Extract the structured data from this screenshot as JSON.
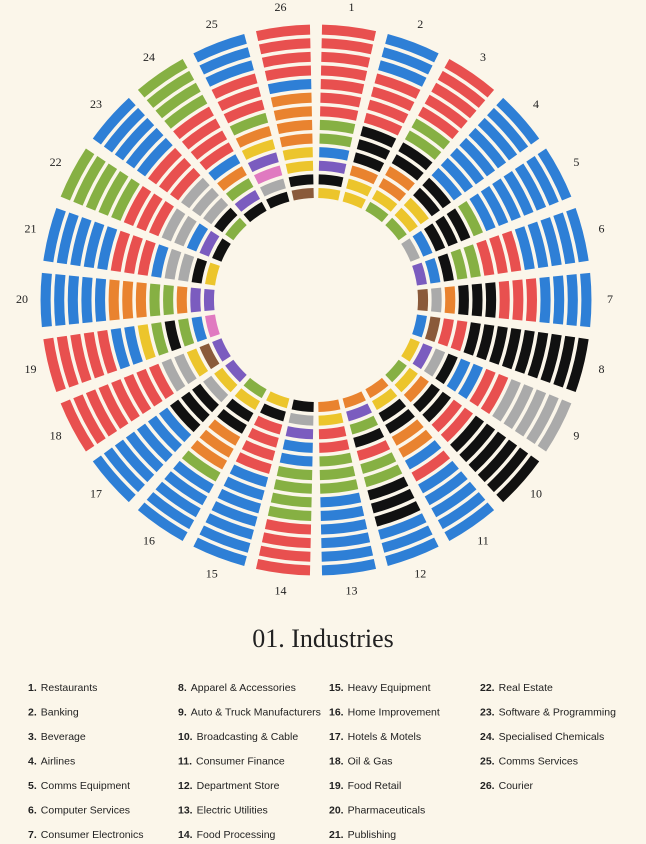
{
  "chart_data": {
    "type": "radial-rings",
    "title": "01. Industries",
    "palette": {
      "B": "#2e7fd6",
      "R": "#e8504f",
      "G": "#86b043",
      "O": "#e9832f",
      "Y": "#ecc52c",
      "K": "#111111",
      "A": "#aaaaaa",
      "P": "#7b5cbf",
      "N": "#e07ac0",
      "W": "#8a5a3a"
    },
    "wedges": [
      {
        "label": "1",
        "rings": "YKPBGGRRRRRRR"
      },
      {
        "label": "2",
        "rings": "YYOKKKRRRRBBB"
      },
      {
        "label": "3",
        "rings": "GYOOKKGGRRRRR"
      },
      {
        "label": "4",
        "rings": "GYYKKBBBBBBBB"
      },
      {
        "label": "5",
        "rings": "ABKKKGBBBBBBB"
      },
      {
        "label": "6",
        "rings": "PBKGGRRRBBBBB"
      },
      {
        "label": "7",
        "rings": "WAOKKKRRRBBBB"
      },
      {
        "label": "8",
        "rings": "BWRRKKKKKKKKK"
      },
      {
        "label": "9",
        "rings": "YPAKBBRRAAAAA"
      },
      {
        "label": "10",
        "rings": "GYOKKRRKKKKKK"
      },
      {
        "label": "11",
        "rings": "OYKKOOBRBBBBB"
      },
      {
        "label": "12",
        "rings": "OPGKRGGKKKBBB"
      },
      {
        "label": "13",
        "rings": "OYRRGGGBBBBBB"
      },
      {
        "label": "14",
        "rings": "KAPBBGGGGRRRR"
      },
      {
        "label": "15",
        "rings": "YKRRRRBBBBBBB"
      },
      {
        "label": "16",
        "rings": "GYKKOOOGBBBBB"
      },
      {
        "label": "17",
        "rings": "PYAKKKBBBBBBB"
      },
      {
        "label": "18",
        "rings": "PWYAARRRRRRRR"
      },
      {
        "label": "19",
        "rings": "NBGKGYBBRRRRR"
      },
      {
        "label": "20",
        "rings": "PPOGGOOOBBBBB"
      },
      {
        "label": "21",
        "rings": "YKAABRRRBBBBB"
      },
      {
        "label": "22",
        "rings": "KPBAARRRGGGGG"
      },
      {
        "label": "23",
        "rings": "GKAAARRRBBBBB"
      },
      {
        "label": "24",
        "rings": "KPGOBRRRRGGGG"
      },
      {
        "label": "25",
        "rings": "KANPYOGRRRBBB"
      },
      {
        "label": "26",
        "rings": "WKYYOOOOBRRRR"
      }
    ],
    "legend": [
      {
        "number": "1.",
        "name": "Restaurants"
      },
      {
        "number": "2.",
        "name": "Banking"
      },
      {
        "number": "3.",
        "name": "Beverage"
      },
      {
        "number": "4.",
        "name": "Airlines"
      },
      {
        "number": "5.",
        "name": "Comms Equipment"
      },
      {
        "number": "6.",
        "name": "Computer Services"
      },
      {
        "number": "7.",
        "name": "Consumer Electronics"
      },
      {
        "number": "8.",
        "name": "Apparel & Accessories"
      },
      {
        "number": "9.",
        "name": "Auto & Truck Manufacturers"
      },
      {
        "number": "10.",
        "name": "Broadcasting & Cable"
      },
      {
        "number": "11.",
        "name": "Consumer Finance"
      },
      {
        "number": "12.",
        "name": "Department Store"
      },
      {
        "number": "13.",
        "name": "Electric Utilities"
      },
      {
        "number": "14.",
        "name": "Food Processing"
      },
      {
        "number": "15.",
        "name": "Heavy Equipment"
      },
      {
        "number": "16.",
        "name": "Home Improvement"
      },
      {
        "number": "17.",
        "name": "Hotels & Motels"
      },
      {
        "number": "18.",
        "name": "Oil & Gas"
      },
      {
        "number": "19.",
        "name": "Food Retail"
      },
      {
        "number": "20.",
        "name": "Pharmaceuticals"
      },
      {
        "number": "21.",
        "name": "Publishing"
      },
      {
        "number": "22.",
        "name": "Real Estate"
      },
      {
        "number": "23.",
        "name": "Software & Programming"
      },
      {
        "number": "24.",
        "name": "Specialised Chemicals"
      },
      {
        "number": "25.",
        "name": "Comms Services"
      },
      {
        "number": "26.",
        "name": "Courier"
      }
    ]
  }
}
